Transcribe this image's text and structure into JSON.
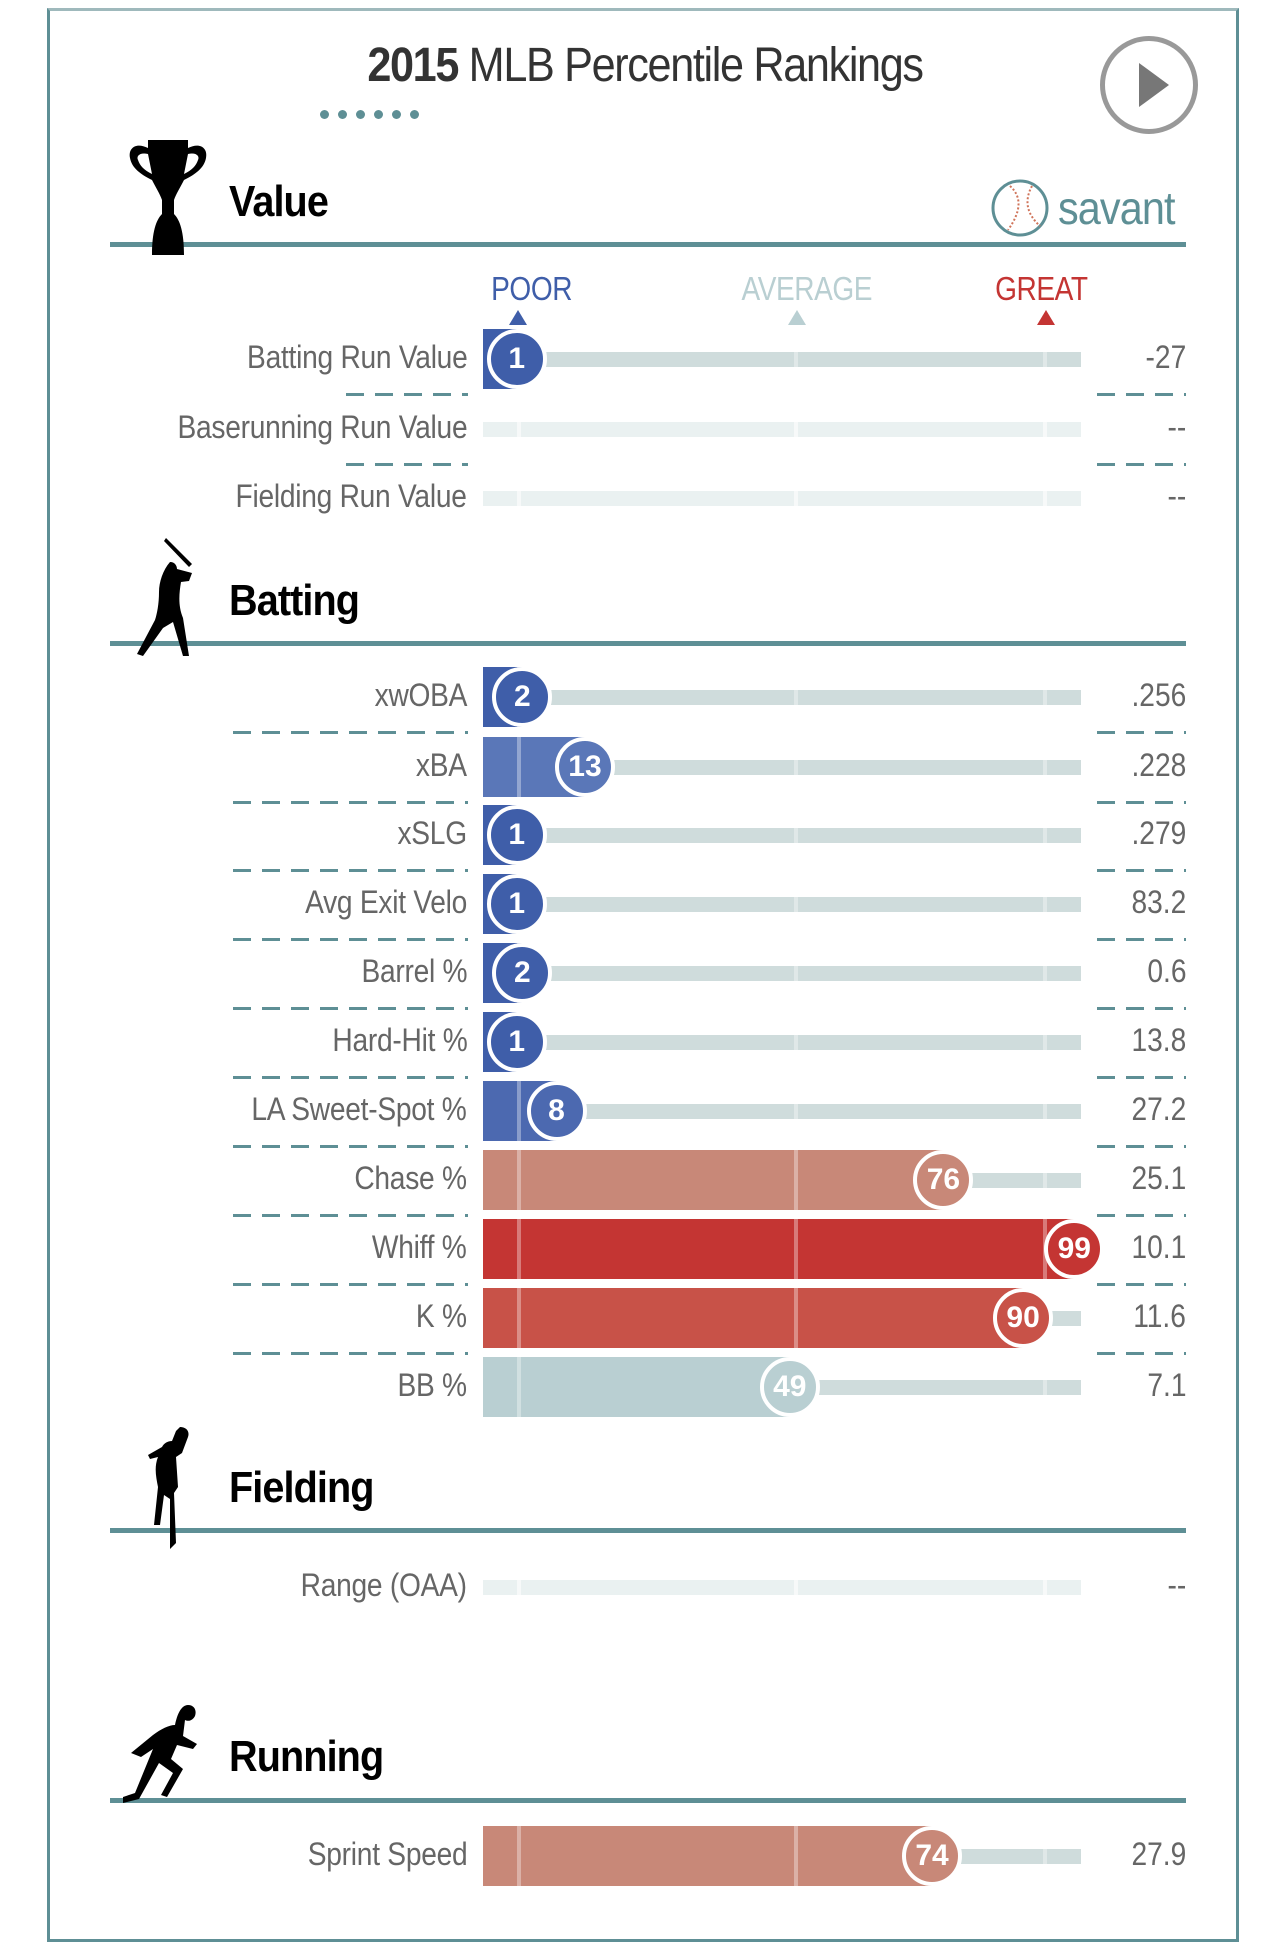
{
  "header": {
    "year": "2015",
    "title": "MLB Percentile Rankings",
    "brand": "savant"
  },
  "scale": {
    "poor": "POOR",
    "average": "AVERAGE",
    "great": "GREAT"
  },
  "colors": {
    "accent": "#5e8f95",
    "poor": "#3f5ea9",
    "great": "#c43533",
    "average": "#b9cfd2",
    "track": "#cfdcdc",
    "empty": "#eaf1f1"
  },
  "sections": [
    {
      "id": "value",
      "title": "Value",
      "icon": "trophy-icon",
      "rows": [
        {
          "label": "Batting Run Value",
          "pct": 1,
          "value": "-27",
          "color": "#3f5ea9"
        },
        {
          "label": "Baserunning Run Value",
          "pct": null,
          "value": "--"
        },
        {
          "label": "Fielding Run Value",
          "pct": null,
          "value": "--"
        }
      ]
    },
    {
      "id": "batting",
      "title": "Batting",
      "icon": "batter-icon",
      "rows": [
        {
          "label": "xwOBA",
          "pct": 2,
          "value": ".256",
          "color": "#3f5ea9"
        },
        {
          "label": "xBA",
          "pct": 13,
          "value": ".228",
          "color": "#5a77b8"
        },
        {
          "label": "xSLG",
          "pct": 1,
          "value": ".279",
          "color": "#3f5ea9"
        },
        {
          "label": "Avg Exit Velo",
          "pct": 1,
          "value": "83.2",
          "color": "#3f5ea9"
        },
        {
          "label": "Barrel %",
          "pct": 2,
          "value": "0.6",
          "color": "#3f5ea9"
        },
        {
          "label": "Hard-Hit %",
          "pct": 1,
          "value": "13.8",
          "color": "#3f5ea9"
        },
        {
          "label": "LA Sweet-Spot %",
          "pct": 8,
          "value": "27.2",
          "color": "#4c69b0"
        },
        {
          "label": "Chase %",
          "pct": 76,
          "value": "25.1",
          "color": "#c88878"
        },
        {
          "label": "Whiff %",
          "pct": 99,
          "value": "10.1",
          "color": "#c43533"
        },
        {
          "label": "K %",
          "pct": 90,
          "value": "11.6",
          "color": "#c85248"
        },
        {
          "label": "BB %",
          "pct": 49,
          "value": "7.1",
          "color": "#b9cfd2"
        }
      ]
    },
    {
      "id": "fielding",
      "title": "Fielding",
      "icon": "fielder-icon",
      "rows": [
        {
          "label": "Range (OAA)",
          "pct": null,
          "value": "--"
        }
      ]
    },
    {
      "id": "running",
      "title": "Running",
      "icon": "runner-icon",
      "rows": [
        {
          "label": "Sprint Speed",
          "pct": 74,
          "value": "27.9",
          "color": "#c88878"
        }
      ]
    }
  ]
}
